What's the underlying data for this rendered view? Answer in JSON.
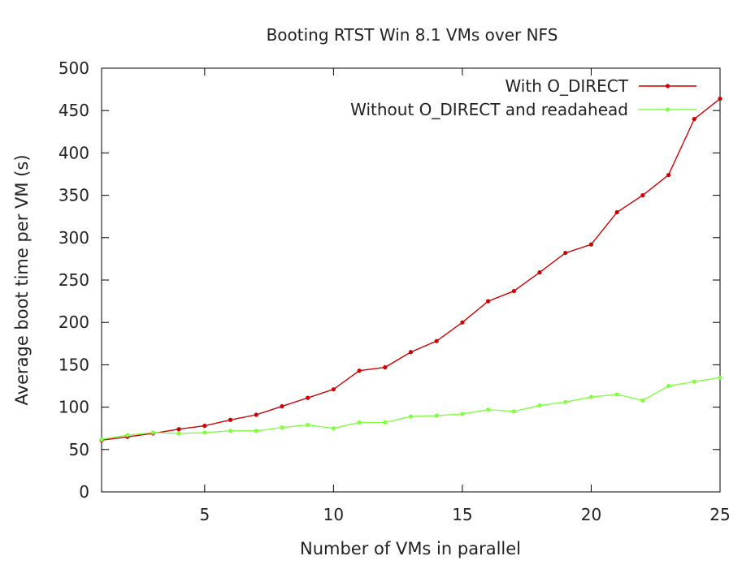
{
  "chart_data": {
    "type": "line",
    "title": "Booting RTST Win 8.1 VMs over NFS",
    "xlabel": "Number of VMs in parallel",
    "ylabel": "Average boot time per VM (s)",
    "xlim": [
      1,
      25
    ],
    "ylim": [
      0,
      500
    ],
    "xticks": [
      5,
      10,
      15,
      20,
      25
    ],
    "yticks": [
      0,
      50,
      100,
      150,
      200,
      250,
      300,
      350,
      400,
      450,
      500
    ],
    "grid": false,
    "legend_position": "top-right",
    "x": [
      1,
      2,
      3,
      4,
      5,
      6,
      7,
      8,
      9,
      10,
      11,
      12,
      13,
      14,
      15,
      16,
      17,
      18,
      19,
      20,
      21,
      22,
      23,
      24,
      25
    ],
    "series": [
      {
        "name": "With O_DIRECT",
        "color": "#cc0000",
        "values": [
          61,
          65,
          69,
          74,
          78,
          85,
          91,
          101,
          111,
          121,
          143,
          147,
          165,
          178,
          200,
          225,
          237,
          259,
          282,
          292,
          330,
          350,
          374,
          440,
          464
        ]
      },
      {
        "name": "Without O_DIRECT and readahead",
        "color": "#80ff40",
        "values": [
          62,
          67,
          70,
          69,
          70,
          72,
          72,
          76,
          79,
          75,
          82,
          82,
          89,
          90,
          92,
          97,
          95,
          102,
          106,
          112,
          115,
          108,
          125,
          130,
          135
        ]
      }
    ]
  }
}
